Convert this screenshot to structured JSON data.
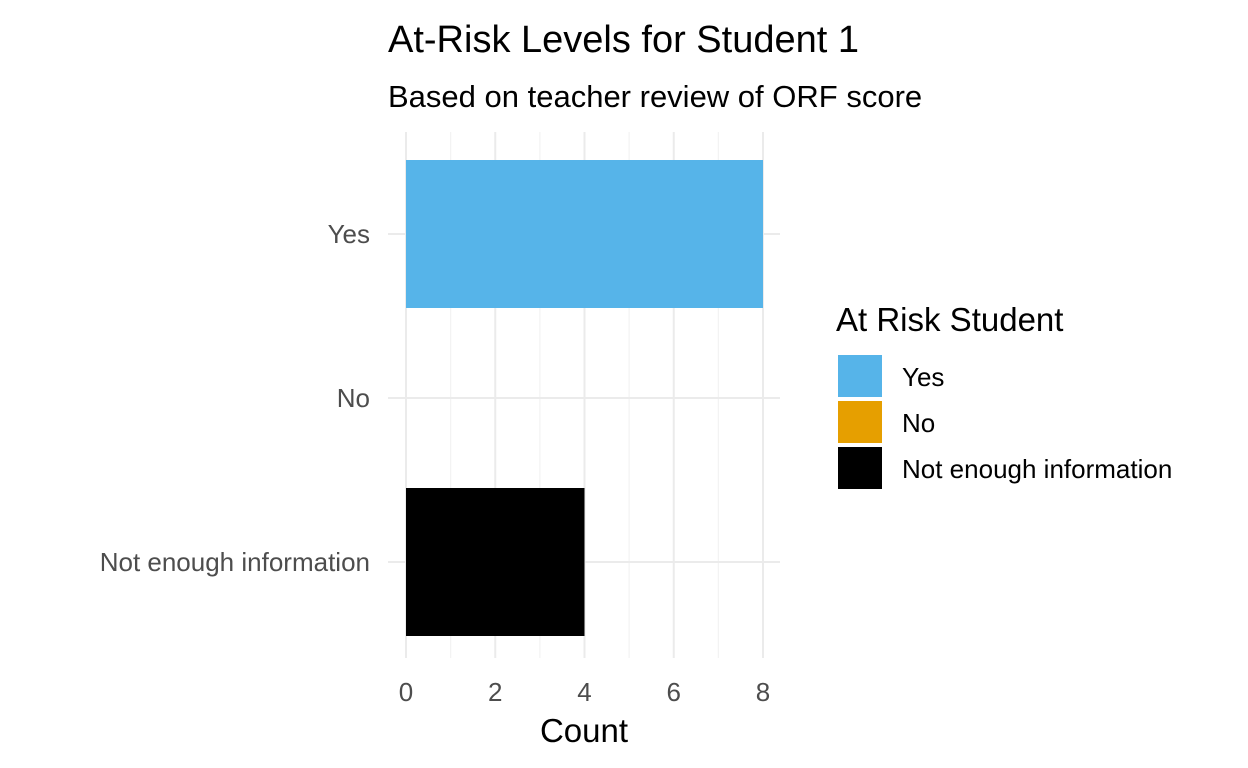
{
  "chart_data": {
    "type": "bar",
    "orientation": "horizontal",
    "title": "At-Risk Levels for Student 1",
    "subtitle": "Based on teacher review of ORF score",
    "xlabel": "Count",
    "ylabel": "",
    "categories": [
      "Yes",
      "No",
      "Not enough information"
    ],
    "values": [
      8,
      0,
      4
    ],
    "colors": [
      "#56B4E9",
      "#E69F00",
      "#000000"
    ],
    "xlim": [
      0,
      8.4
    ],
    "xticks": [
      0,
      2,
      4,
      6,
      8
    ],
    "grid": true,
    "legend": {
      "title": "At Risk Student",
      "position": "right",
      "entries": [
        "Yes",
        "No",
        "Not enough information"
      ]
    }
  }
}
